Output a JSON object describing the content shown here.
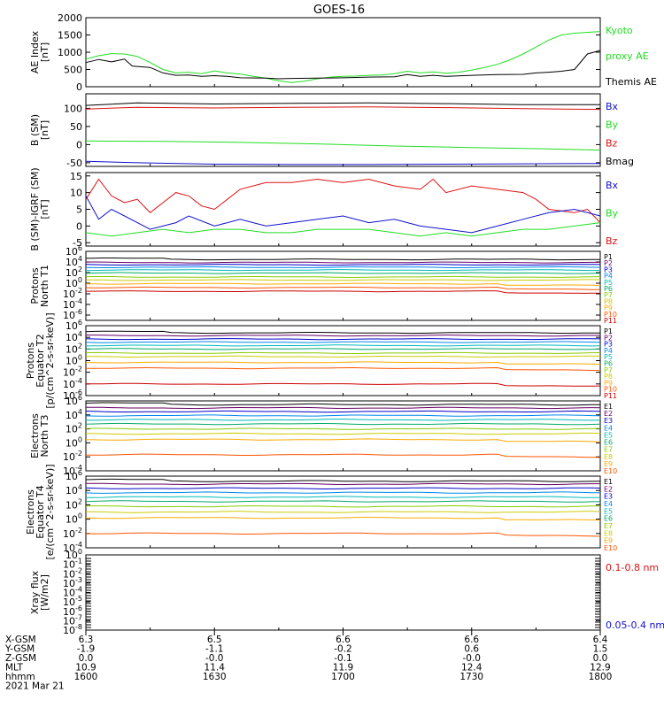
{
  "title": "GOES-16",
  "colors": {
    "black": "#000000",
    "green": "#22dd22",
    "blue": "#1111cc",
    "red": "#dd1111",
    "P1": "#000000",
    "P2": "#660066",
    "P3": "#0000cc",
    "P4": "#0088ee",
    "P5": "#00bbbb",
    "P6": "#00aa66",
    "P7": "#88cc00",
    "P8": "#cccc00",
    "P9": "#ffaa00",
    "P10": "#ff5500",
    "P11": "#cc0000"
  },
  "orbit_table": {
    "row_labels": [
      "X-GSM",
      "Y-GSM",
      "Z-GSM",
      "MLT",
      "hhmm"
    ],
    "columns": [
      [
        "6.3",
        "-1.9",
        "0.0",
        "10.9",
        "1600"
      ],
      [
        "6.5",
        "-1.1",
        "-0.0",
        "11.4",
        "1630"
      ],
      [
        "6.6",
        "-0.2",
        "-0.1",
        "11.9",
        "1700"
      ],
      [
        "6.6",
        "0.6",
        "-0.0",
        "12.4",
        "1730"
      ],
      [
        "6.4",
        "1.5",
        "0.0",
        "12.9",
        "1800"
      ]
    ],
    "date": "2021 Mar 21"
  },
  "chart_data": [
    {
      "type": "line",
      "panel": "ae",
      "ylabel": [
        "AE Index",
        "[nT]"
      ],
      "ylim": [
        0,
        2000
      ],
      "yticks": [
        "0",
        "500",
        "1000",
        "1500",
        "2000"
      ],
      "ytick_values": [
        0,
        500,
        1000,
        1500,
        2000
      ],
      "legend": [
        {
          "text": "Kyoto",
          "color": "green"
        },
        {
          "text": "proxy AE",
          "color": "green"
        },
        {
          "text": "Themis AE",
          "color": "black"
        }
      ],
      "x": [
        "16:00",
        "18:00"
      ],
      "series": [
        {
          "name": "Kyoto proxy AE",
          "color": "green",
          "values": [
            [
              0,
              800
            ],
            [
              0.05,
              900
            ],
            [
              0.1,
              960
            ],
            [
              0.15,
              950
            ],
            [
              0.2,
              880
            ],
            [
              0.25,
              700
            ],
            [
              0.3,
              500
            ],
            [
              0.35,
              400
            ],
            [
              0.4,
              420
            ],
            [
              0.45,
              380
            ],
            [
              0.5,
              460
            ],
            [
              0.55,
              400
            ],
            [
              0.6,
              370
            ],
            [
              0.65,
              300
            ],
            [
              0.7,
              250
            ],
            [
              0.75,
              170
            ],
            [
              0.8,
              120
            ],
            [
              0.85,
              160
            ],
            [
              0.9,
              230
            ],
            [
              0.95,
              280
            ],
            [
              1.0,
              300
            ],
            [
              1.05,
              310
            ],
            [
              1.1,
              330
            ],
            [
              1.15,
              340
            ],
            [
              1.2,
              380
            ],
            [
              1.25,
              450
            ],
            [
              1.3,
              400
            ],
            [
              1.35,
              430
            ],
            [
              1.4,
              390
            ],
            [
              1.45,
              420
            ],
            [
              1.5,
              480
            ],
            [
              1.55,
              560
            ],
            [
              1.6,
              650
            ],
            [
              1.65,
              780
            ],
            [
              1.7,
              950
            ],
            [
              1.75,
              1150
            ],
            [
              1.8,
              1350
            ],
            [
              1.85,
              1500
            ],
            [
              1.9,
              1550
            ],
            [
              2.0,
              1600
            ]
          ]
        },
        {
          "name": "Themis AE",
          "color": "black",
          "values": [
            [
              0,
              700
            ],
            [
              0.05,
              790
            ],
            [
              0.1,
              720
            ],
            [
              0.15,
              800
            ],
            [
              0.18,
              600
            ],
            [
              0.25,
              560
            ],
            [
              0.3,
              400
            ],
            [
              0.35,
              330
            ],
            [
              0.4,
              340
            ],
            [
              0.45,
              300
            ],
            [
              0.5,
              320
            ],
            [
              0.55,
              300
            ],
            [
              0.6,
              260
            ],
            [
              0.7,
              250
            ],
            [
              0.75,
              230
            ],
            [
              0.8,
              240
            ],
            [
              0.9,
              250
            ],
            [
              1.0,
              260
            ],
            [
              1.1,
              280
            ],
            [
              1.2,
              290
            ],
            [
              1.25,
              350
            ],
            [
              1.3,
              300
            ],
            [
              1.35,
              330
            ],
            [
              1.4,
              300
            ],
            [
              1.5,
              330
            ],
            [
              1.6,
              350
            ],
            [
              1.7,
              360
            ],
            [
              1.75,
              400
            ],
            [
              1.8,
              420
            ],
            [
              1.85,
              450
            ],
            [
              1.9,
              500
            ],
            [
              1.95,
              950
            ],
            [
              2.0,
              1050
            ]
          ]
        }
      ]
    },
    {
      "type": "line",
      "panel": "b_sm",
      "ylabel": [
        "B (SM)",
        "[nT]"
      ],
      "ylim": [
        -60,
        140
      ],
      "yticks": [
        "-50",
        "0",
        "50",
        "100"
      ],
      "ytick_values": [
        -50,
        0,
        50,
        100
      ],
      "legend": [
        {
          "text": "Bx",
          "color": "blue"
        },
        {
          "text": "By",
          "color": "green"
        },
        {
          "text": "Bz",
          "color": "red"
        },
        {
          "text": "Bmag",
          "color": "black"
        }
      ],
      "series": [
        {
          "name": "Bmag",
          "color": "black",
          "values": [
            [
              0,
              108
            ],
            [
              0.2,
              115
            ],
            [
              0.5,
              112
            ],
            [
              0.8,
              114
            ],
            [
              1.1,
              115
            ],
            [
              1.4,
              113
            ],
            [
              1.7,
              110
            ],
            [
              2.0,
              110
            ]
          ]
        },
        {
          "name": "Bz",
          "color": "red",
          "values": [
            [
              0,
              98
            ],
            [
              0.2,
              103
            ],
            [
              0.5,
              101
            ],
            [
              0.8,
              103
            ],
            [
              1.1,
              104
            ],
            [
              1.4,
              102
            ],
            [
              1.7,
              99
            ],
            [
              2.0,
              97
            ]
          ]
        },
        {
          "name": "By",
          "color": "green",
          "values": [
            [
              0,
              10
            ],
            [
              0.3,
              9
            ],
            [
              0.6,
              6
            ],
            [
              0.9,
              2
            ],
            [
              1.2,
              -4
            ],
            [
              1.5,
              -8
            ],
            [
              1.8,
              -12
            ],
            [
              2.0,
              -15
            ]
          ]
        },
        {
          "name": "Bx",
          "color": "blue",
          "values": [
            [
              0,
              -46
            ],
            [
              0.2,
              -50
            ],
            [
              0.5,
              -54
            ],
            [
              0.8,
              -55
            ],
            [
              1.1,
              -55
            ],
            [
              1.4,
              -54
            ],
            [
              1.7,
              -53
            ],
            [
              2.0,
              -52
            ]
          ]
        }
      ]
    },
    {
      "type": "line",
      "panel": "b_igrf",
      "ylabel": [
        "B (SM)-IGRF (SM)",
        "[nT]"
      ],
      "ylim": [
        -6,
        16
      ],
      "yticks": [
        "-5",
        "0",
        "5",
        "10",
        "15"
      ],
      "ytick_values": [
        -5,
        0,
        5,
        10,
        15
      ],
      "legend": [
        {
          "text": "Bx",
          "color": "blue"
        },
        {
          "text": "By",
          "color": "green"
        },
        {
          "text": "Bz",
          "color": "red"
        }
      ],
      "series": [
        {
          "name": "Bz",
          "color": "red",
          "values": [
            [
              0,
              8
            ],
            [
              0.05,
              14
            ],
            [
              0.1,
              9
            ],
            [
              0.15,
              7
            ],
            [
              0.2,
              8
            ],
            [
              0.25,
              4
            ],
            [
              0.3,
              7
            ],
            [
              0.35,
              10
            ],
            [
              0.4,
              9
            ],
            [
              0.45,
              6
            ],
            [
              0.5,
              5
            ],
            [
              0.55,
              8
            ],
            [
              0.6,
              11
            ],
            [
              0.7,
              13
            ],
            [
              0.8,
              13
            ],
            [
              0.9,
              14
            ],
            [
              1.0,
              13
            ],
            [
              1.1,
              14
            ],
            [
              1.2,
              12
            ],
            [
              1.3,
              11
            ],
            [
              1.35,
              14
            ],
            [
              1.4,
              10
            ],
            [
              1.5,
              12
            ],
            [
              1.6,
              11
            ],
            [
              1.7,
              10
            ],
            [
              1.75,
              8
            ],
            [
              1.8,
              5
            ],
            [
              1.9,
              4
            ],
            [
              1.95,
              5
            ],
            [
              2.0,
              1
            ]
          ]
        },
        {
          "name": "Bx",
          "color": "blue",
          "values": [
            [
              0,
              9
            ],
            [
              0.05,
              2
            ],
            [
              0.1,
              5
            ],
            [
              0.15,
              3
            ],
            [
              0.2,
              1
            ],
            [
              0.25,
              -1
            ],
            [
              0.3,
              0
            ],
            [
              0.35,
              1
            ],
            [
              0.4,
              3
            ],
            [
              0.5,
              0
            ],
            [
              0.6,
              2
            ],
            [
              0.7,
              0
            ],
            [
              0.8,
              1
            ],
            [
              0.9,
              2
            ],
            [
              1.0,
              3
            ],
            [
              1.1,
              1
            ],
            [
              1.2,
              2
            ],
            [
              1.3,
              0
            ],
            [
              1.4,
              -1
            ],
            [
              1.5,
              -2
            ],
            [
              1.6,
              0
            ],
            [
              1.7,
              2
            ],
            [
              1.8,
              4
            ],
            [
              1.9,
              5
            ],
            [
              2.0,
              3
            ]
          ]
        },
        {
          "name": "By",
          "color": "green",
          "values": [
            [
              0,
              -2
            ],
            [
              0.1,
              -3
            ],
            [
              0.2,
              -2
            ],
            [
              0.3,
              -1
            ],
            [
              0.4,
              -2
            ],
            [
              0.5,
              -1
            ],
            [
              0.6,
              -1
            ],
            [
              0.7,
              -2
            ],
            [
              0.8,
              -2
            ],
            [
              0.9,
              -1
            ],
            [
              1.0,
              -1
            ],
            [
              1.1,
              -1
            ],
            [
              1.2,
              -2
            ],
            [
              1.3,
              -3
            ],
            [
              1.4,
              -2
            ],
            [
              1.5,
              -3
            ],
            [
              1.6,
              -2
            ],
            [
              1.7,
              -1
            ],
            [
              1.8,
              -1
            ],
            [
              1.9,
              0
            ],
            [
              2.0,
              1
            ]
          ]
        }
      ]
    },
    {
      "type": "line",
      "panel": "p_north",
      "ylabel": [
        "Protons",
        "North T1"
      ],
      "log": true,
      "ylim": [
        1e-07,
        1000000.0
      ],
      "yticks": [
        "10^6",
        "10^4",
        "10^2",
        "10^0",
        "10^-2",
        "10^-4",
        "10^-6"
      ],
      "ytick_values": [
        1000000.0,
        10000.0,
        100.0,
        1,
        0.01,
        0.0001,
        1e-06
      ],
      "legend": [
        "P1",
        "P2",
        "P3",
        "P4",
        "P5",
        "P6",
        "P7",
        "P8",
        "P9",
        "P10",
        "P11"
      ],
      "levels": [
        30000.0,
        8000.0,
        3000.0,
        1000.0,
        300.0,
        80,
        15,
        4,
        0.8,
        0.15,
        0.03
      ]
    },
    {
      "type": "line",
      "panel": "p_equator",
      "ylabel": [
        "Protons",
        "Equator T2",
        "[p/(cm^2-s-sr-keV)]"
      ],
      "log": true,
      "ylim": [
        1e-06,
        1000000.0
      ],
      "yticks": [
        "10^6",
        "10^4",
        "10^2",
        "10^0",
        "10^-2",
        "10^-4",
        "10^-6"
      ],
      "ytick_values": [
        1000000.0,
        10000.0,
        100.0,
        1,
        0.01,
        0.0001,
        1e-06
      ],
      "legend": [
        "P1",
        "P2",
        "P3",
        "P4",
        "P5",
        "P6",
        "P7",
        "P8",
        "P9",
        "P10",
        "P11"
      ],
      "levels": [
        60000.0,
        20000.0,
        5000.0,
        1500.0,
        400.0,
        100.0,
        20,
        5,
        0.5,
        0.05,
        0.0001
      ]
    },
    {
      "type": "line",
      "panel": "e_north",
      "ylabel": [
        "Electrons",
        "North T3"
      ],
      "log": true,
      "ylim": [
        0.0001,
        1000000.0
      ],
      "yticks": [
        "10^6",
        "10^4",
        "10^2",
        "10^0",
        "10^-2",
        "10^-4"
      ],
      "ytick_values": [
        1000000.0,
        10000.0,
        100.0,
        1,
        0.01,
        0.0001
      ],
      "legend": [
        "E1",
        "E2",
        "E3",
        "E4",
        "E5",
        "E6",
        "E7",
        "E8",
        "E9",
        "E10"
      ],
      "levels": [
        300000.0,
        100000.0,
        30000.0,
        8000.0,
        2000.0,
        500.0,
        100.0,
        20,
        3,
        0.02
      ]
    },
    {
      "type": "line",
      "panel": "e_equator",
      "ylabel": [
        "Electrons",
        "Equator T4",
        "[e/(cm^2-s-sr-keV)]"
      ],
      "log": true,
      "ylim": [
        0.0001,
        1000000.0
      ],
      "yticks": [
        "10^6",
        "10^4",
        "10^2",
        "10^0",
        "10^-2",
        "10^-4"
      ],
      "ytick_values": [
        1000000.0,
        10000.0,
        100.0,
        1,
        0.01,
        0.0001
      ],
      "legend": [
        "E1",
        "E2",
        "E3",
        "E4",
        "E5",
        "E6",
        "E7",
        "E8",
        "E9",
        "E10"
      ],
      "levels": [
        200000.0,
        80000.0,
        20000.0,
        5000.0,
        1200.0,
        300.0,
        60,
        10,
        1.5,
        0.01
      ]
    },
    {
      "type": "line",
      "panel": "xray",
      "ylabel": [
        "Xray flux",
        "[W/m2]"
      ],
      "log": true,
      "ylim": [
        1e-08,
        1
      ],
      "yticks": [
        "10^0",
        "10^-1",
        "10^-2",
        "10^-3",
        "10^-4",
        "10^-5",
        "10^-6",
        "10^-7",
        "10^-8"
      ],
      "ytick_values": [
        1,
        0.1,
        0.01,
        0.001,
        0.0001,
        1e-05,
        1e-06,
        1e-07,
        1e-08
      ],
      "legend": [
        {
          "text": "0.1-0.8 nm",
          "color": "red"
        },
        {
          "text": "0.05-0.4 nm",
          "color": "blue"
        }
      ],
      "series": []
    }
  ]
}
